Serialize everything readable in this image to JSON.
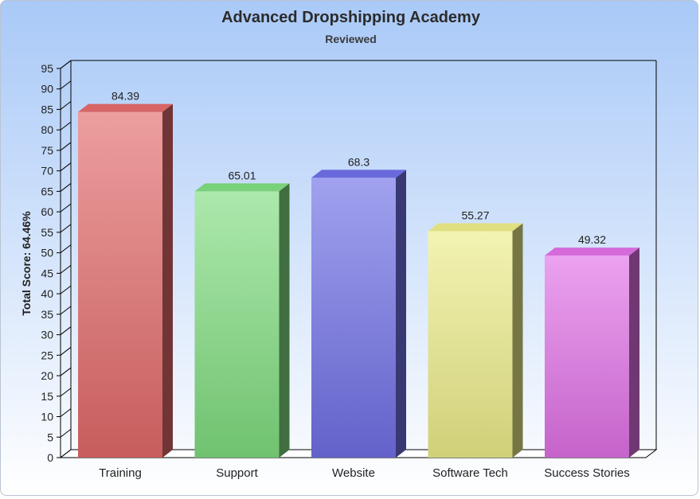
{
  "chart_data": {
    "type": "bar",
    "title": "Advanced Dropshipping Academy",
    "subtitle": "Reviewed",
    "xlabel": "",
    "ylabel": "Total Score: 64.46%",
    "categories": [
      "Training",
      "Support",
      "Website",
      "Software Tech",
      "Success Stories"
    ],
    "values": [
      84.39,
      65.01,
      68.3,
      55.27,
      49.32
    ],
    "value_labels": [
      "84.39",
      "65.01",
      "68.3",
      "55.27",
      "49.32"
    ],
    "ylim": [
      0,
      95
    ],
    "yticks": [
      0,
      5,
      10,
      15,
      20,
      25,
      30,
      35,
      40,
      45,
      50,
      55,
      60,
      65,
      70,
      75,
      80,
      85,
      90,
      95
    ],
    "grid": false,
    "bar_colors": [
      "#e26a6a",
      "#7fdc7f",
      "#6f6fe6",
      "#ecec8a",
      "#e070e6"
    ]
  }
}
